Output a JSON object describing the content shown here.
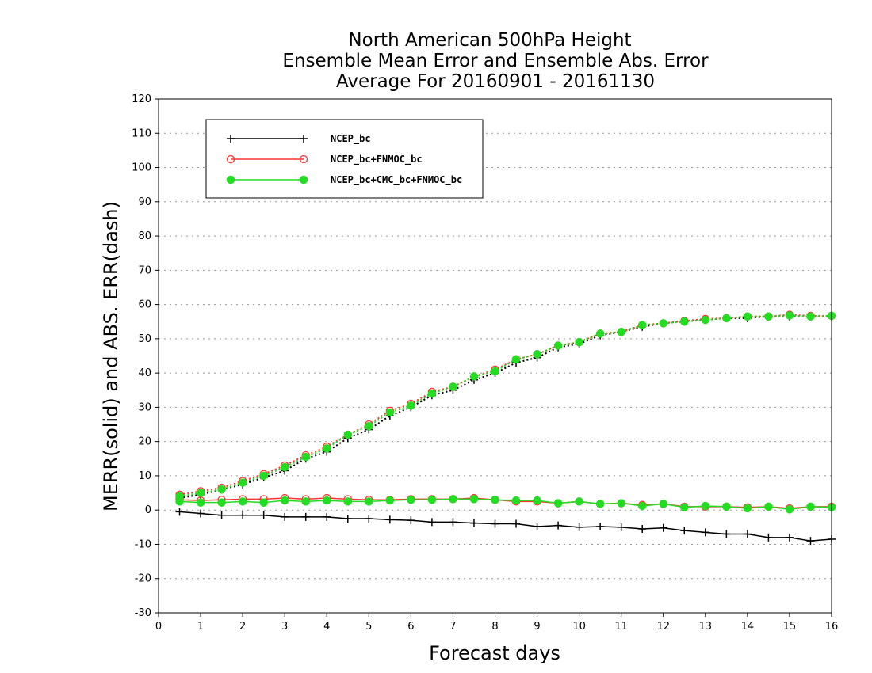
{
  "chart_data": {
    "type": "line",
    "title": [
      "North American 500hPa Height",
      "Ensemble Mean Error and Ensemble Abs. Error",
      "Average For 20160901 - 20161130"
    ],
    "xlabel": "Forecast days",
    "ylabel": "MERR(solid) and ABS. ERR(dash)",
    "xlim": [
      0,
      16
    ],
    "ylim": [
      -30,
      120
    ],
    "xticks": [
      0,
      1,
      2,
      3,
      4,
      5,
      6,
      7,
      8,
      9,
      10,
      11,
      12,
      13,
      14,
      15,
      16
    ],
    "yticks": [
      -30,
      -20,
      -10,
      0,
      10,
      20,
      30,
      40,
      50,
      60,
      70,
      80,
      90,
      100,
      110,
      120
    ],
    "grid": true,
    "legend_position": "top-left",
    "x": [
      0.5,
      1,
      1.5,
      2,
      2.5,
      3,
      3.5,
      4,
      4.5,
      5,
      5.5,
      6,
      6.5,
      7,
      7.5,
      8,
      8.5,
      9,
      9.5,
      10,
      10.5,
      11,
      11.5,
      12,
      12.5,
      13,
      13.5,
      14,
      14.5,
      15,
      15.5,
      16
    ],
    "series": [
      {
        "name": "NCEP_bc",
        "color": "#000000",
        "marker": "plus",
        "merr": [
          -0.5,
          -1,
          -1.5,
          -1.5,
          -1.5,
          -2,
          -2,
          -2,
          -2.5,
          -2.5,
          -2.8,
          -3,
          -3.5,
          -3.5,
          -3.8,
          -4,
          -4,
          -4.8,
          -4.5,
          -5,
          -4.8,
          -5,
          -5.5,
          -5.2,
          -6,
          -6.5,
          -7,
          -7,
          -8,
          -8,
          -9,
          -8.5
        ],
        "abserr": [
          3.5,
          4.5,
          6,
          7.5,
          9.5,
          11.5,
          15,
          17,
          21,
          23.5,
          27.5,
          30,
          33.5,
          35,
          38,
          40,
          43,
          44.5,
          47.5,
          48.5,
          51,
          52,
          53.5,
          54.5,
          55,
          55.5,
          56,
          56,
          56.5,
          56.5,
          56.5,
          56.5
        ]
      },
      {
        "name": "NCEP_bc+FNMOC_bc",
        "color": "#ff3333",
        "marker": "open-circle",
        "merr": [
          3,
          2.8,
          3,
          3.2,
          3.2,
          3.5,
          3.2,
          3.5,
          3.2,
          3,
          3,
          3.2,
          3.2,
          3.2,
          3.5,
          3,
          2.5,
          2.5,
          2,
          2.5,
          1.8,
          2,
          1.5,
          1.8,
          1,
          1,
          1,
          0.8,
          1,
          0.5,
          1,
          1
        ],
        "abserr": [
          4.5,
          5.5,
          6.5,
          8.5,
          10.5,
          13,
          16,
          18.5,
          22,
          25,
          29,
          31,
          34.5,
          36,
          39,
          41,
          44,
          45.5,
          48,
          49,
          51.5,
          52,
          54,
          54.5,
          55.2,
          55.8,
          56,
          56.5,
          56.5,
          57,
          56.7,
          56.7
        ]
      },
      {
        "name": "NCEP_bc+CMC_bc+FNMOC_bc",
        "color": "#22dd22",
        "marker": "filled-circle",
        "merr": [
          2.5,
          2.2,
          2.2,
          2.5,
          2.2,
          2.8,
          2.5,
          2.8,
          2.5,
          2.5,
          2.8,
          3,
          3,
          3.2,
          3.2,
          3,
          2.8,
          2.8,
          2,
          2.5,
          1.8,
          2,
          1.2,
          1.8,
          0.8,
          1.2,
          1,
          0.5,
          1,
          0.2,
          1,
          0.8
        ],
        "abserr": [
          4,
          5,
          6,
          8,
          10,
          12.5,
          15.5,
          18,
          22,
          24.5,
          28.5,
          30.5,
          34,
          36,
          39,
          40.5,
          44,
          45.5,
          48,
          49,
          51.5,
          52,
          54,
          54.5,
          55,
          55.5,
          56,
          56.5,
          56.5,
          56.8,
          56.5,
          56.7
        ]
      }
    ]
  }
}
